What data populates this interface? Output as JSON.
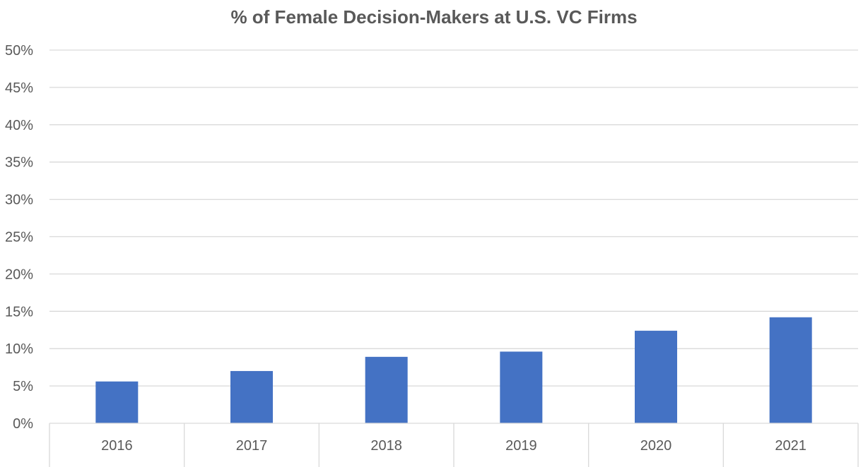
{
  "chart_data": {
    "type": "bar",
    "title": "% of Female Decision-Makers at U.S. VC Firms",
    "xlabel": "",
    "ylabel": "",
    "categories": [
      "2016",
      "2017",
      "2018",
      "2019",
      "2020",
      "2021"
    ],
    "series": [
      {
        "values": [
          5.6,
          7.0,
          8.9,
          9.6,
          12.4,
          14.2
        ]
      }
    ],
    "ylim": [
      0,
      50
    ],
    "y_ticks": [
      0,
      5,
      10,
      15,
      20,
      25,
      30,
      35,
      40,
      45,
      50
    ],
    "y_tick_labels": [
      "0%",
      "5%",
      "10%",
      "15%",
      "20%",
      "25%",
      "30%",
      "35%",
      "40%",
      "45%",
      "50%"
    ],
    "grid": true,
    "legend": "none",
    "bar_color": "#4472C4"
  }
}
